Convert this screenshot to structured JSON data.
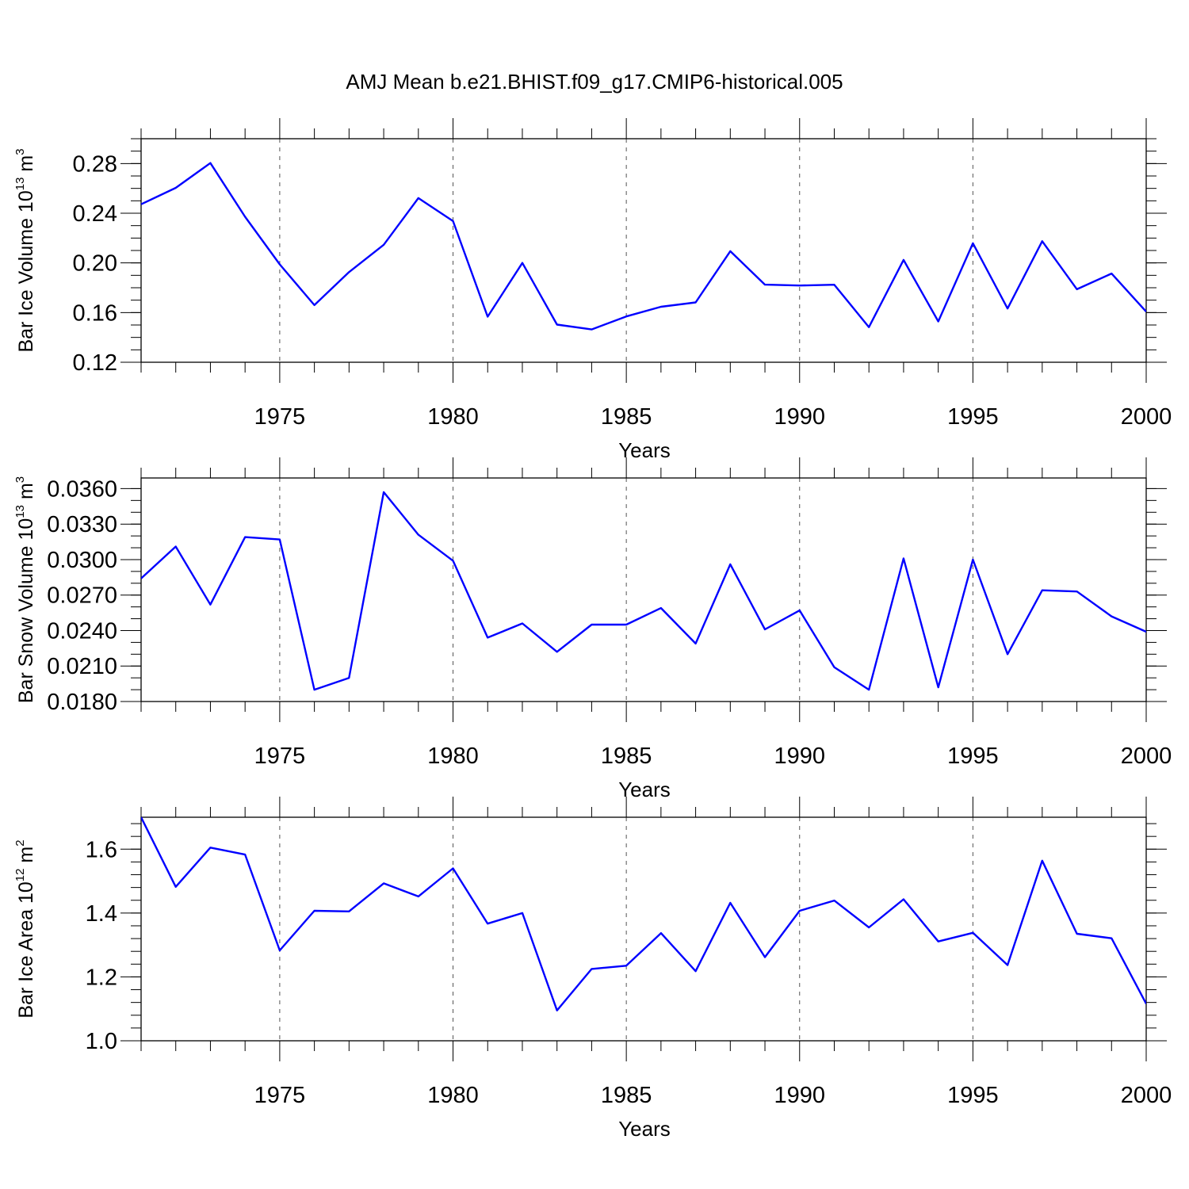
{
  "figure": {
    "title": "AMJ Mean b.e21.BHIST.f09_g17.CMIP6-historical.005"
  },
  "chart_data": [
    {
      "type": "line",
      "xlabel": "Years",
      "ylabel_parts": [
        "Bar Ice Volume 10",
        "13",
        " m",
        "3"
      ],
      "xlim": [
        1971,
        2000
      ],
      "ylim": [
        0.12,
        0.3
      ],
      "x_major_ticks": [
        1975,
        1980,
        1985,
        1990,
        1995,
        2000
      ],
      "x_tick_labels": [
        "1975",
        "1980",
        "1985",
        "1990",
        "1995",
        "2000"
      ],
      "y_major_ticks": [
        0.12,
        0.16,
        0.2,
        0.24,
        0.28
      ],
      "y_tick_labels": [
        "0.12",
        "0.16",
        "0.20",
        "0.24",
        "0.28"
      ],
      "y_minor_step": 0.01,
      "color": "#0000ff",
      "x": [
        1971,
        1972,
        1973,
        1974,
        1975,
        1976,
        1977,
        1978,
        1979,
        1980,
        1981,
        1982,
        1983,
        1984,
        1985,
        1986,
        1987,
        1988,
        1989,
        1990,
        1991,
        1992,
        1993,
        1994,
        1995,
        1996,
        1997,
        1998,
        1999,
        2000
      ],
      "values": [
        0.2472,
        0.2604,
        0.2804,
        0.2371,
        0.1988,
        0.166,
        0.1926,
        0.2146,
        0.2522,
        0.2337,
        0.1567,
        0.2,
        0.1503,
        0.1464,
        0.1569,
        0.1647,
        0.1682,
        0.2094,
        0.1825,
        0.1818,
        0.1824,
        0.1483,
        0.2024,
        0.1529,
        0.2158,
        0.1633,
        0.2175,
        0.1788,
        0.1914,
        0.1607
      ]
    },
    {
      "type": "line",
      "xlabel": "Years",
      "ylabel_parts": [
        "Bar Snow Volume 10",
        "13",
        " m",
        "3"
      ],
      "xlim": [
        1971,
        2000
      ],
      "ylim": [
        0.018,
        0.0369
      ],
      "x_major_ticks": [
        1975,
        1980,
        1985,
        1990,
        1995,
        2000
      ],
      "x_tick_labels": [
        "1975",
        "1980",
        "1985",
        "1990",
        "1995",
        "2000"
      ],
      "y_major_ticks": [
        0.018,
        0.021,
        0.024,
        0.027,
        0.03,
        0.033,
        0.036
      ],
      "y_tick_labels": [
        "0.0180",
        "0.0210",
        "0.0240",
        "0.0270",
        "0.0300",
        "0.0330",
        "0.0360"
      ],
      "y_minor_step": 0.001,
      "color": "#0000ff",
      "x": [
        1971,
        1972,
        1973,
        1974,
        1975,
        1976,
        1977,
        1978,
        1979,
        1980,
        1981,
        1982,
        1983,
        1984,
        1985,
        1986,
        1987,
        1988,
        1989,
        1990,
        1991,
        1992,
        1993,
        1994,
        1995,
        1996,
        1997,
        1998,
        1999,
        2000
      ],
      "values": [
        0.0284,
        0.0311,
        0.0262,
        0.0319,
        0.0317,
        0.019,
        0.02,
        0.0357,
        0.0321,
        0.0299,
        0.0234,
        0.0246,
        0.0222,
        0.0245,
        0.0245,
        0.0259,
        0.0229,
        0.0296,
        0.0241,
        0.0257,
        0.0209,
        0.019,
        0.0301,
        0.0192,
        0.03,
        0.022,
        0.0274,
        0.0273,
        0.0252,
        0.0239
      ]
    },
    {
      "type": "line",
      "xlabel": "Years",
      "ylabel_parts": [
        "Bar Ice Area 10",
        "12",
        " m",
        "2"
      ],
      "xlim": [
        1971,
        2000
      ],
      "ylim": [
        1.0,
        1.7
      ],
      "x_major_ticks": [
        1975,
        1980,
        1985,
        1990,
        1995,
        2000
      ],
      "x_tick_labels": [
        "1975",
        "1980",
        "1985",
        "1990",
        "1995",
        "2000"
      ],
      "y_major_ticks": [
        1.0,
        1.2,
        1.4,
        1.6
      ],
      "y_tick_labels": [
        "1.0",
        "1.2",
        "1.4",
        "1.6"
      ],
      "y_minor_step": 0.04,
      "color": "#0000ff",
      "x": [
        1971,
        1972,
        1973,
        1974,
        1975,
        1976,
        1977,
        1978,
        1979,
        1980,
        1981,
        1982,
        1983,
        1984,
        1985,
        1986,
        1987,
        1988,
        1989,
        1990,
        1991,
        1992,
        1993,
        1994,
        1995,
        1996,
        1997,
        1998,
        1999,
        2000
      ],
      "values": [
        1.7,
        1.482,
        1.605,
        1.583,
        1.283,
        1.407,
        1.405,
        1.493,
        1.452,
        1.54,
        1.367,
        1.4,
        1.095,
        1.225,
        1.235,
        1.337,
        1.218,
        1.432,
        1.262,
        1.407,
        1.439,
        1.355,
        1.443,
        1.311,
        1.338,
        1.237,
        1.564,
        1.335,
        1.321,
        1.116
      ]
    }
  ]
}
